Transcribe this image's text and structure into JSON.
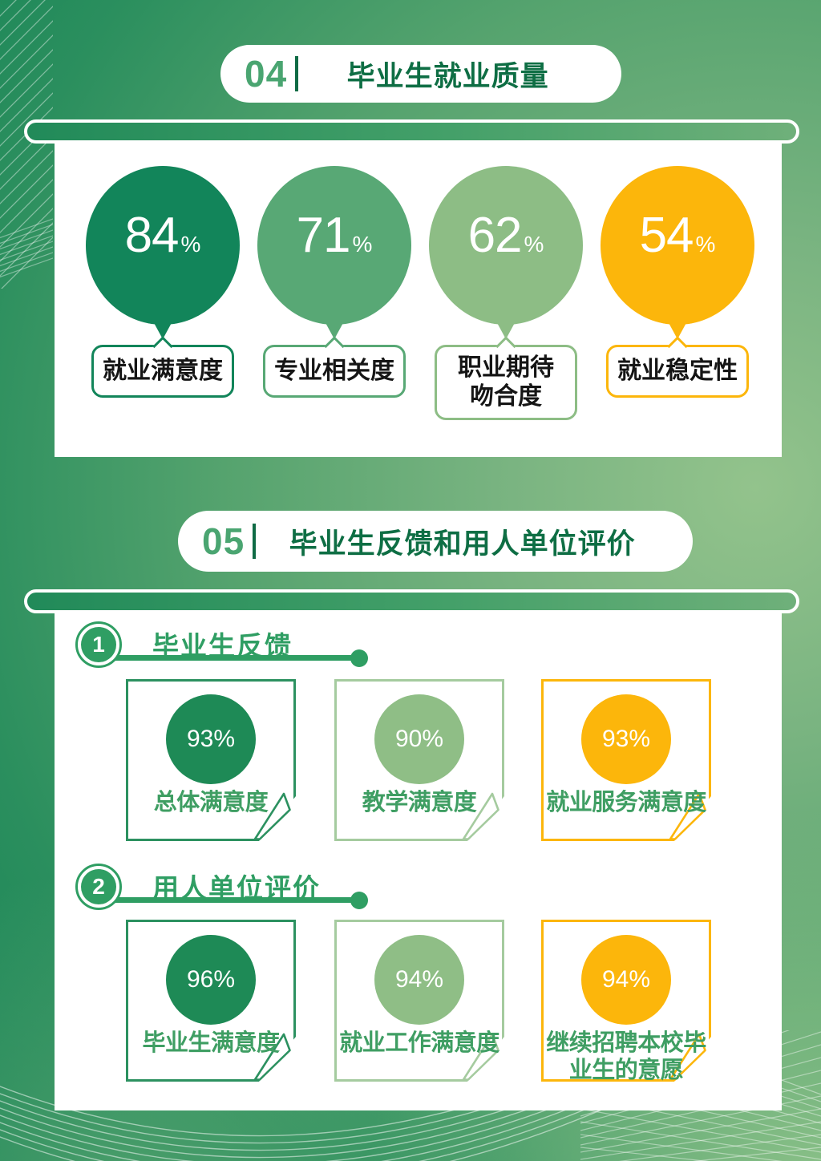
{
  "colors": {
    "dark_green": "#12855a",
    "mid_green": "#58a875",
    "light_green": "#8dbd85",
    "yellow": "#fcb60b",
    "accent_green": "#2f9e63",
    "header_title_green": "#0e6e44",
    "header_number_green": "#4aa571"
  },
  "section4": {
    "number": "04",
    "title": "毕业生就业质量",
    "balloons": [
      {
        "value": "84",
        "unit": "%",
        "label": "就业满意度",
        "color": "#12855a"
      },
      {
        "value": "71",
        "unit": "%",
        "label": "专业相关度",
        "color": "#58a875"
      },
      {
        "value": "62",
        "unit": "%",
        "label": "职业期待\n吻合度",
        "color": "#8dbd85"
      },
      {
        "value": "54",
        "unit": "%",
        "label": "就业稳定性",
        "color": "#fcb60b"
      }
    ]
  },
  "section5": {
    "number": "05",
    "title": "毕业生反馈和用人单位评价",
    "groups": [
      {
        "badge": "1",
        "title": "毕业生反馈",
        "cards": [
          {
            "value": "93%",
            "label": "总体满意度",
            "border": "#2c9160",
            "fill": "#1e8a56"
          },
          {
            "value": "90%",
            "label": "教学满意度",
            "border": "#a5cb9f",
            "fill": "#8fbe86"
          },
          {
            "value": "93%",
            "label": "就业服务满意度",
            "border": "#fcb60b",
            "fill": "#fcb60b"
          }
        ]
      },
      {
        "badge": "2",
        "title": "用人单位评价",
        "cards": [
          {
            "value": "96%",
            "label": "毕业生满意度",
            "border": "#2c9160",
            "fill": "#1e8a56"
          },
          {
            "value": "94%",
            "label": "就业工作满意度",
            "border": "#a5cb9f",
            "fill": "#8fbe86"
          },
          {
            "value": "94%",
            "label": "继续招聘本校毕业生的意愿",
            "border": "#fcb60b",
            "fill": "#fcb60b"
          }
        ]
      }
    ]
  },
  "chart_data": [
    {
      "type": "bar",
      "title": "毕业生就业质量",
      "categories": [
        "就业满意度",
        "专业相关度",
        "职业期待吻合度",
        "就业稳定性"
      ],
      "values": [
        84,
        71,
        62,
        54
      ],
      "unit": "%"
    },
    {
      "type": "bar",
      "title": "毕业生反馈",
      "categories": [
        "总体满意度",
        "教学满意度",
        "就业服务满意度"
      ],
      "values": [
        93,
        90,
        93
      ],
      "unit": "%"
    },
    {
      "type": "bar",
      "title": "用人单位评价",
      "categories": [
        "毕业生满意度",
        "就业工作满意度",
        "继续招聘本校毕业生的意愿"
      ],
      "values": [
        96,
        94,
        94
      ],
      "unit": "%"
    }
  ]
}
